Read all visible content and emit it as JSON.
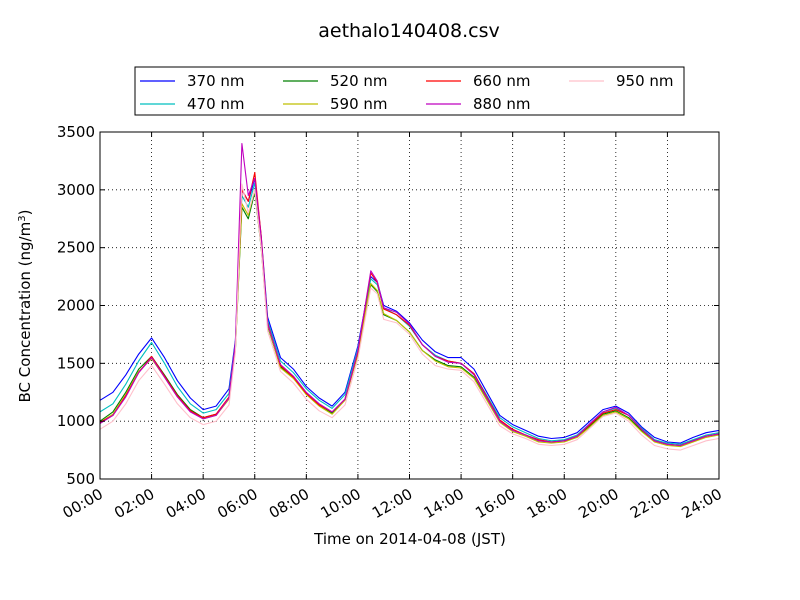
{
  "chart_data": {
    "type": "line",
    "title": "aethalo140408.csv",
    "xlabel": "Time on 2014-04-08 (JST)",
    "ylabel": "BC Concentration (ng/m",
    "ylabel_superscript": "3",
    "ylabel_suffix": ")",
    "xlim": [
      0,
      24
    ],
    "ylim": [
      500,
      3500
    ],
    "x_ticks": [
      0,
      2,
      4,
      6,
      8,
      10,
      12,
      14,
      16,
      18,
      20,
      22,
      24
    ],
    "x_tick_labels": [
      "00:00",
      "02:00",
      "04:00",
      "06:00",
      "08:00",
      "10:00",
      "12:00",
      "14:00",
      "16:00",
      "18:00",
      "20:00",
      "22:00",
      "24:00"
    ],
    "y_ticks": [
      500,
      1000,
      1500,
      2000,
      2500,
      3000,
      3500
    ],
    "y_tick_labels": [
      "500",
      "1000",
      "1500",
      "2000",
      "2500",
      "3000",
      "3500"
    ],
    "grid": true,
    "legend_position": "top-center",
    "x": [
      0,
      0.5,
      1,
      1.5,
      2,
      2.5,
      3,
      3.5,
      4,
      4.5,
      5,
      5.25,
      5.5,
      5.75,
      6,
      6.25,
      6.5,
      7,
      7.5,
      8,
      8.5,
      9,
      9.5,
      10,
      10.5,
      10.75,
      11,
      11.5,
      12,
      12.5,
      13,
      13.5,
      14,
      14.5,
      15,
      15.5,
      16,
      16.5,
      17,
      17.5,
      18,
      18.5,
      19,
      19.5,
      20,
      20.5,
      21,
      21.5,
      22,
      22.5,
      23,
      23.5,
      24
    ],
    "series": [
      {
        "name": "370 nm",
        "color": "#0000ff",
        "values": [
          1180,
          1250,
          1400,
          1580,
          1720,
          1550,
          1350,
          1200,
          1100,
          1130,
          1280,
          1700,
          3000,
          2900,
          3100,
          2600,
          1900,
          1550,
          1450,
          1300,
          1200,
          1130,
          1250,
          1650,
          2250,
          2200,
          2000,
          1950,
          1850,
          1700,
          1600,
          1550,
          1550,
          1450,
          1250,
          1050,
          970,
          920,
          870,
          850,
          860,
          900,
          1000,
          1100,
          1130,
          1070,
          950,
          860,
          820,
          810,
          860,
          900,
          920
        ]
      },
      {
        "name": "470 nm",
        "color": "#00bfbf",
        "values": [
          1080,
          1150,
          1320,
          1520,
          1680,
          1500,
          1300,
          1150,
          1070,
          1100,
          1240,
          1680,
          2950,
          2850,
          3060,
          2560,
          1870,
          1520,
          1420,
          1280,
          1180,
          1110,
          1230,
          1630,
          2230,
          2180,
          1980,
          1920,
          1820,
          1660,
          1570,
          1520,
          1500,
          1410,
          1220,
          1030,
          950,
          900,
          850,
          830,
          840,
          880,
          980,
          1080,
          1110,
          1050,
          940,
          840,
          810,
          800,
          840,
          880,
          900
        ]
      },
      {
        "name": "520 nm",
        "color": "#007f00",
        "values": [
          1000,
          1080,
          1250,
          1450,
          1560,
          1400,
          1230,
          1100,
          1030,
          1060,
          1200,
          1620,
          2850,
          2750,
          2980,
          2500,
          1820,
          1470,
          1380,
          1240,
          1140,
          1070,
          1190,
          1580,
          2180,
          2120,
          1920,
          1870,
          1770,
          1610,
          1530,
          1480,
          1470,
          1380,
          1190,
          1000,
          920,
          880,
          830,
          820,
          830,
          860,
          960,
          1060,
          1090,
          1030,
          920,
          830,
          800,
          790,
          830,
          870,
          890
        ]
      },
      {
        "name": "590 nm",
        "color": "#bfbf00",
        "values": [
          990,
          1060,
          1230,
          1430,
          1540,
          1380,
          1210,
          1090,
          1020,
          1050,
          1190,
          1630,
          2880,
          2780,
          3000,
          2510,
          1830,
          1460,
          1370,
          1230,
          1130,
          1060,
          1180,
          1580,
          2190,
          2130,
          1930,
          1870,
          1770,
          1610,
          1520,
          1470,
          1460,
          1370,
          1180,
          990,
          910,
          870,
          820,
          810,
          820,
          860,
          950,
          1050,
          1080,
          1020,
          910,
          820,
          790,
          780,
          820,
          860,
          880
        ]
      },
      {
        "name": "660 nm",
        "color": "#ff0000",
        "values": [
          990,
          1050,
          1220,
          1420,
          1560,
          1390,
          1220,
          1090,
          1030,
          1060,
          1210,
          1660,
          3000,
          2900,
          3150,
          2600,
          1850,
          1480,
          1380,
          1240,
          1140,
          1080,
          1190,
          1600,
          2280,
          2200,
          1970,
          1920,
          1830,
          1660,
          1560,
          1520,
          1500,
          1410,
          1210,
          1010,
          930,
          880,
          840,
          820,
          830,
          870,
          970,
          1070,
          1100,
          1050,
          930,
          830,
          800,
          790,
          830,
          870,
          890
        ]
      },
      {
        "name": "880 nm",
        "color": "#bf00bf",
        "values": [
          980,
          1050,
          1210,
          1420,
          1550,
          1380,
          1210,
          1080,
          1020,
          1050,
          1200,
          1680,
          3400,
          2950,
          3100,
          2580,
          1840,
          1490,
          1390,
          1250,
          1150,
          1080,
          1190,
          1610,
          2300,
          2210,
          1980,
          1940,
          1840,
          1660,
          1560,
          1510,
          1500,
          1400,
          1200,
          1000,
          920,
          880,
          830,
          820,
          830,
          870,
          980,
          1080,
          1120,
          1050,
          930,
          830,
          800,
          790,
          830,
          870,
          890
        ]
      },
      {
        "name": "950 nm",
        "color": "#ffc0cb",
        "values": [
          930,
          1000,
          1150,
          1350,
          1480,
          1320,
          1150,
          1030,
          970,
          1000,
          1140,
          1600,
          3050,
          2800,
          3000,
          2500,
          1780,
          1430,
          1330,
          1190,
          1090,
          1030,
          1140,
          1540,
          2150,
          2100,
          1880,
          1850,
          1750,
          1580,
          1480,
          1450,
          1440,
          1340,
          1150,
          960,
          890,
          850,
          800,
          790,
          800,
          840,
          940,
          1040,
          1070,
          1000,
          880,
          790,
          760,
          750,
          790,
          830,
          850
        ]
      }
    ]
  }
}
